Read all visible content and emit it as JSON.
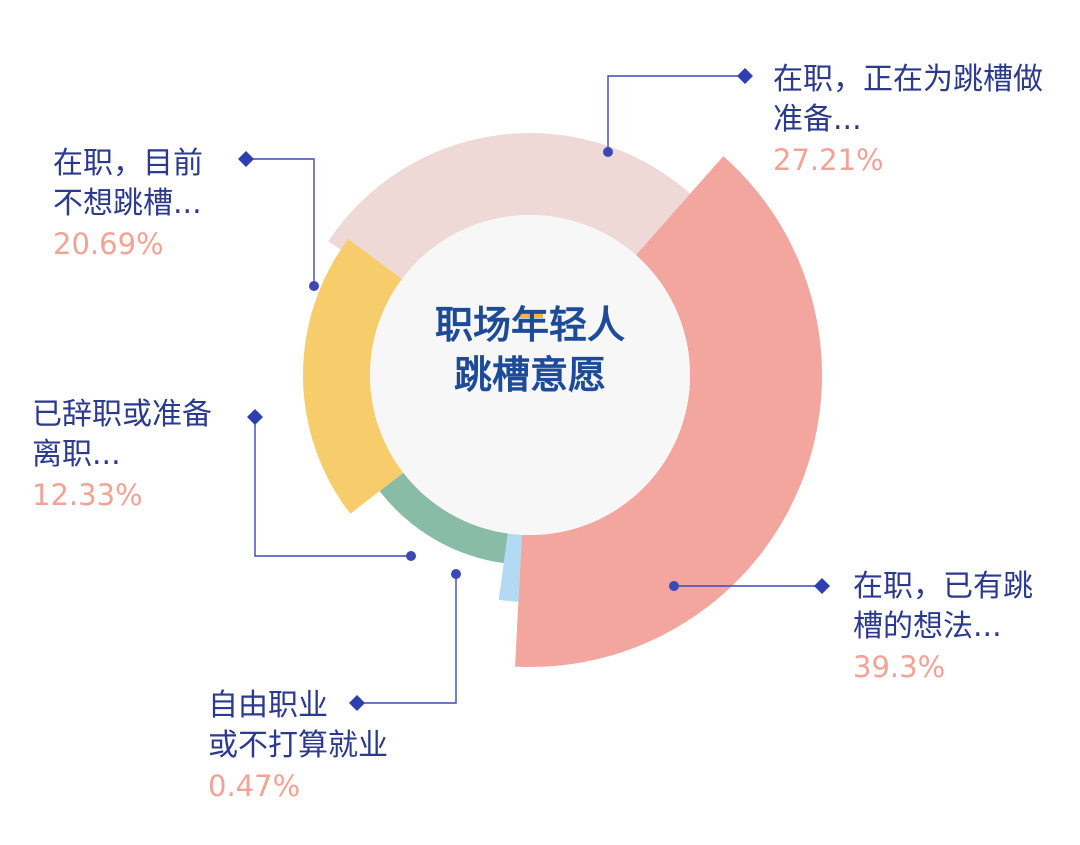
{
  "chart_data": {
    "type": "pie",
    "center_title": [
      "职场年轻人",
      "跳槽意愿"
    ],
    "slices": [
      {
        "label_lines": [
          "在职，正在为跳槽做",
          "准备..."
        ],
        "value": 27.21,
        "value_text": "27.21%",
        "color": "#efd9d7"
      },
      {
        "label_lines": [
          "在职，已有跳",
          "槽的想法..."
        ],
        "value": 39.3,
        "value_text": "39.3%",
        "color": "#f2a69e"
      },
      {
        "label_lines": [
          "自由职业",
          "或不打算就业"
        ],
        "value": 0.47,
        "value_text": "0.47%",
        "color": "#b3daf5"
      },
      {
        "label_lines": [
          "已辞职或准备",
          "离职..."
        ],
        "value": 12.33,
        "value_text": "12.33%",
        "color": "#88bca7"
      },
      {
        "label_lines": [
          "在职，目前",
          "不想跳槽..."
        ],
        "value": 20.69,
        "value_text": "20.69%",
        "color": "#f6cd6a"
      }
    ],
    "colors": {
      "leader": "#3b48b5",
      "marker": "#2d3fb0",
      "label_text": "#2b3a8f",
      "value_text": "#f2a394",
      "center_bg": "#f7f7f7",
      "title_text": "#1d4b9a",
      "accent": "#f2b830"
    }
  }
}
